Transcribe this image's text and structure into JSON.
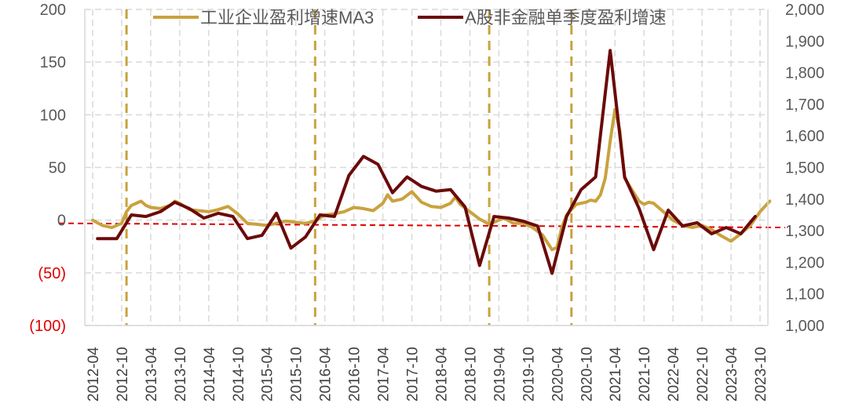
{
  "chart_data": {
    "type": "line",
    "legend": [
      {
        "label": "工业企业盈利增速MA3",
        "color": "#C9A23F"
      },
      {
        "label": "A股非金融单季度盈利增速",
        "color": "#6B0A0A"
      }
    ],
    "left_axis": {
      "ylim": [
        -100,
        200
      ],
      "ticks": [
        {
          "value": 200,
          "label": "200",
          "color": "#595959"
        },
        {
          "value": 150,
          "label": "150",
          "color": "#595959"
        },
        {
          "value": 100,
          "label": "100",
          "color": "#595959"
        },
        {
          "value": 50,
          "label": "50",
          "color": "#595959"
        },
        {
          "value": 0,
          "label": "0",
          "color": "#595959"
        },
        {
          "value": -50,
          "label": "(50)",
          "color": "#E00000"
        },
        {
          "value": -100,
          "label": "(100)",
          "color": "#E00000"
        }
      ]
    },
    "right_axis": {
      "ylim": [
        1000,
        2000
      ],
      "ticks": [
        {
          "value": 2000,
          "label": "2,000"
        },
        {
          "value": 1900,
          "label": "1,900"
        },
        {
          "value": 1800,
          "label": "1,800"
        },
        {
          "value": 1700,
          "label": "1,700"
        },
        {
          "value": 1600,
          "label": "1,600"
        },
        {
          "value": 1500,
          "label": "1,500"
        },
        {
          "value": 1400,
          "label": "1,400"
        },
        {
          "value": 1300,
          "label": "1,300"
        },
        {
          "value": 1200,
          "label": "1,200"
        },
        {
          "value": 1100,
          "label": "1,100"
        },
        {
          "value": 1000,
          "label": "1,000"
        }
      ]
    },
    "x_tick_labels": [
      "2012-04",
      "2012-10",
      "2013-04",
      "2013-10",
      "2014-04",
      "2014-10",
      "2015-04",
      "2015-10",
      "2016-04",
      "2016-10",
      "2017-04",
      "2017-10",
      "2018-04",
      "2018-10",
      "2019-04",
      "2019-10",
      "2020-04",
      "2020-10",
      "2021-04",
      "2021-10",
      "2022-04",
      "2022-10",
      "2023-04",
      "2023-10"
    ],
    "vertical_markers": [
      "2012-11",
      "2016-02",
      "2019-02",
      "2020-07"
    ],
    "series": [
      {
        "name": "工业企业盈利增速MA3",
        "color": "#C9A23F",
        "axis": "left",
        "points": [
          [
            "2012-04",
            0
          ],
          [
            "2012-06",
            -5
          ],
          [
            "2012-08",
            -7
          ],
          [
            "2012-10",
            -3
          ],
          [
            "2012-11",
            8
          ],
          [
            "2012-12",
            14
          ],
          [
            "2013-02",
            18
          ],
          [
            "2013-03",
            14
          ],
          [
            "2013-04",
            12
          ],
          [
            "2013-06",
            11
          ],
          [
            "2013-08",
            14
          ],
          [
            "2013-09",
            18
          ],
          [
            "2013-10",
            16
          ],
          [
            "2013-12",
            10
          ],
          [
            "2014-02",
            9
          ],
          [
            "2014-04",
            8
          ],
          [
            "2014-06",
            10
          ],
          [
            "2014-08",
            13
          ],
          [
            "2014-10",
            6
          ],
          [
            "2014-12",
            -3
          ],
          [
            "2015-02",
            -4
          ],
          [
            "2015-04",
            -5
          ],
          [
            "2015-06",
            -3
          ],
          [
            "2015-08",
            -1
          ],
          [
            "2015-10",
            -2
          ],
          [
            "2015-12",
            -3
          ],
          [
            "2016-02",
            -1
          ],
          [
            "2016-04",
            5
          ],
          [
            "2016-06",
            6
          ],
          [
            "2016-08",
            8
          ],
          [
            "2016-10",
            12
          ],
          [
            "2016-12",
            11
          ],
          [
            "2017-02",
            9
          ],
          [
            "2017-04",
            16
          ],
          [
            "2017-05",
            24
          ],
          [
            "2017-06",
            18
          ],
          [
            "2017-08",
            20
          ],
          [
            "2017-10",
            27
          ],
          [
            "2017-12",
            17
          ],
          [
            "2018-02",
            13
          ],
          [
            "2018-04",
            12
          ],
          [
            "2018-06",
            16
          ],
          [
            "2018-07",
            22
          ],
          [
            "2018-08",
            15
          ],
          [
            "2018-10",
            8
          ],
          [
            "2018-12",
            1
          ],
          [
            "2019-02",
            -4
          ],
          [
            "2019-04",
            0
          ],
          [
            "2019-05",
            2
          ],
          [
            "2019-07",
            -3
          ],
          [
            "2019-09",
            -3
          ],
          [
            "2019-11",
            -7
          ],
          [
            "2020-01",
            -14
          ],
          [
            "2020-03",
            -28
          ],
          [
            "2020-04",
            -26
          ],
          [
            "2020-05",
            -7
          ],
          [
            "2020-06",
            5
          ],
          [
            "2020-07",
            10
          ],
          [
            "2020-08",
            15
          ],
          [
            "2020-10",
            17
          ],
          [
            "2020-11",
            19
          ],
          [
            "2020-12",
            18
          ],
          [
            "2021-01",
            24
          ],
          [
            "2021-02",
            40
          ],
          [
            "2021-03",
            75
          ],
          [
            "2021-04",
            105
          ],
          [
            "2021-05",
            85
          ],
          [
            "2021-06",
            40
          ],
          [
            "2021-08",
            25
          ],
          [
            "2021-09",
            18
          ],
          [
            "2021-10",
            15
          ],
          [
            "2021-11",
            17
          ],
          [
            "2021-12",
            16
          ],
          [
            "2022-02",
            8
          ],
          [
            "2022-03",
            4
          ],
          [
            "2022-04",
            0
          ],
          [
            "2022-06",
            -5
          ],
          [
            "2022-08",
            -7
          ],
          [
            "2022-10",
            -5
          ],
          [
            "2022-12",
            -9
          ],
          [
            "2023-02",
            -15
          ],
          [
            "2023-04",
            -20
          ],
          [
            "2023-06",
            -13
          ],
          [
            "2023-08",
            -5
          ],
          [
            "2023-10",
            8
          ],
          [
            "2023-12",
            18
          ]
        ]
      },
      {
        "name": "A股非金融单季度盈利增速",
        "color": "#6B0A0A",
        "axis": "right",
        "points": [
          [
            "2012-05",
            1275
          ],
          [
            "2012-09",
            1275
          ],
          [
            "2012-12",
            1350
          ],
          [
            "2013-03",
            1345
          ],
          [
            "2013-06",
            1360
          ],
          [
            "2013-09",
            1390
          ],
          [
            "2013-12",
            1370
          ],
          [
            "2014-03",
            1340
          ],
          [
            "2014-06",
            1355
          ],
          [
            "2014-09",
            1345
          ],
          [
            "2014-12",
            1275
          ],
          [
            "2015-03",
            1285
          ],
          [
            "2015-06",
            1355
          ],
          [
            "2015-09",
            1245
          ],
          [
            "2015-12",
            1280
          ],
          [
            "2016-03",
            1350
          ],
          [
            "2016-06",
            1345
          ],
          [
            "2016-09",
            1475
          ],
          [
            "2016-12",
            1535
          ],
          [
            "2017-03",
            1510
          ],
          [
            "2017-06",
            1420
          ],
          [
            "2017-09",
            1470
          ],
          [
            "2017-12",
            1440
          ],
          [
            "2018-03",
            1425
          ],
          [
            "2018-06",
            1430
          ],
          [
            "2018-09",
            1375
          ],
          [
            "2018-12",
            1190
          ],
          [
            "2019-03",
            1345
          ],
          [
            "2019-06",
            1340
          ],
          [
            "2019-09",
            1330
          ],
          [
            "2019-12",
            1315
          ],
          [
            "2020-03",
            1165
          ],
          [
            "2020-06",
            1345
          ],
          [
            "2020-09",
            1430
          ],
          [
            "2020-12",
            1470
          ],
          [
            "2021-03",
            1870
          ],
          [
            "2021-06",
            1470
          ],
          [
            "2021-09",
            1370
          ],
          [
            "2021-12",
            1240
          ],
          [
            "2022-03",
            1365
          ],
          [
            "2022-06",
            1315
          ],
          [
            "2022-09",
            1325
          ],
          [
            "2022-12",
            1290
          ],
          [
            "2023-03",
            1310
          ],
          [
            "2023-06",
            1290
          ],
          [
            "2023-09",
            1345
          ]
        ]
      }
    ],
    "reference_lines": [
      {
        "axis": "left",
        "from": -3,
        "to": -7,
        "color": "#E00000",
        "style": "dashed"
      }
    ]
  }
}
